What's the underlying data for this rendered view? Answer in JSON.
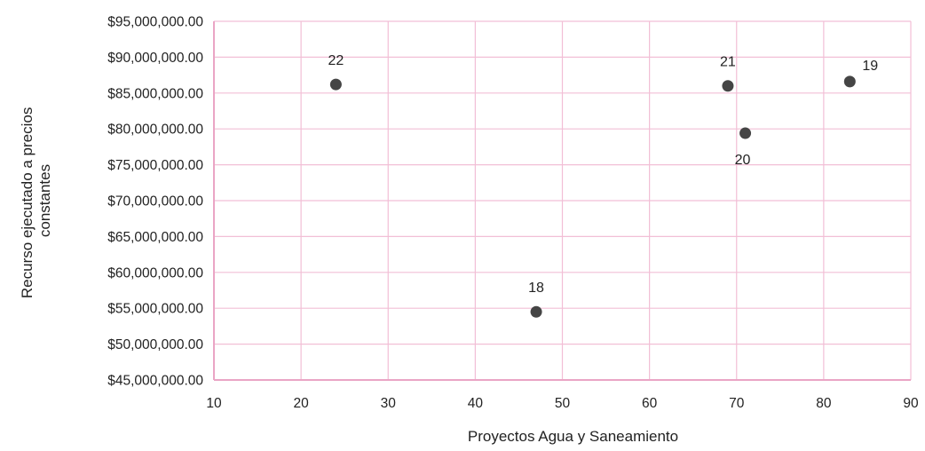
{
  "chart_data": {
    "type": "scatter",
    "title": "",
    "xlabel": "Proyectos Agua y Saneamiento",
    "ylabel_lines": [
      "Recurso ejecutado a precios",
      "constantes"
    ],
    "xlim": [
      10,
      90
    ],
    "ylim": [
      45000000,
      95000000
    ],
    "x_ticks": [
      10,
      20,
      30,
      40,
      50,
      60,
      70,
      80,
      90
    ],
    "x_tick_labels": [
      "10",
      "20",
      "30",
      "40",
      "50",
      "60",
      "70",
      "80",
      "90"
    ],
    "y_ticks": [
      45000000,
      50000000,
      55000000,
      60000000,
      65000000,
      70000000,
      75000000,
      80000000,
      85000000,
      90000000,
      95000000
    ],
    "y_tick_labels": [
      "$45,000,000.00",
      "$50,000,000.00",
      "$55,000,000.00",
      "$60,000,000.00",
      "$65,000,000.00",
      "$70,000,000.00",
      "$75,000,000.00",
      "$80,000,000.00",
      "$85,000,000.00",
      "$90,000,000.00",
      "$95,000,000.00"
    ],
    "grid": true,
    "legend": "none",
    "colors": {
      "point": "#454545",
      "grid": "#f2bfd6",
      "axis": "#eaa5c5"
    },
    "points": [
      {
        "label": "22",
        "x": 24,
        "y": 86200000,
        "label_pos": "above"
      },
      {
        "label": "21",
        "x": 69,
        "y": 86000000,
        "label_pos": "above"
      },
      {
        "label": "19",
        "x": 83,
        "y": 86600000,
        "label_pos": "above-right"
      },
      {
        "label": "20",
        "x": 71,
        "y": 79400000,
        "label_pos": "below"
      },
      {
        "label": "18",
        "x": 47,
        "y": 54500000,
        "label_pos": "above"
      }
    ]
  }
}
